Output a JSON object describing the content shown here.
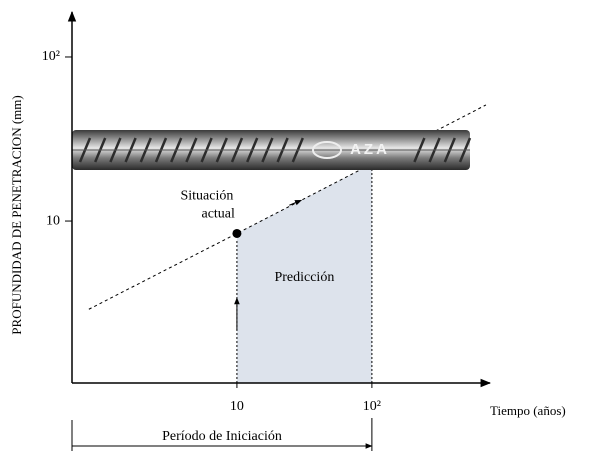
{
  "chart_data": {
    "type": "line",
    "y_label": "PROFUNDIDAD DE PENETRACION (mm)",
    "x_label": "Tiempo (años)",
    "log_x": true,
    "log_y": true,
    "xlim": [
      0.6,
      750
    ],
    "ylim": [
      1.03,
      188
    ],
    "xticks": [
      10,
      {
        "value": 100,
        "label": "10²"
      }
    ],
    "yticks": [
      10,
      {
        "value": 100,
        "label": "10²"
      }
    ],
    "x": [
      0.8,
      10,
      700
    ],
    "series": [
      {
        "color": "#000000",
        "values": [
          2.9,
          8.4,
          51
        ]
      }
    ],
    "current_point": {
      "x": 10,
      "y": 8.4,
      "label": [
        "Situación",
        "actual"
      ]
    },
    "prediction_region": {
      "x": [
        10,
        100
      ],
      "label": "Predicción",
      "color": "#dde3ec"
    },
    "period_label": "Período de Iniciación",
    "bar_brand": "AZA"
  }
}
